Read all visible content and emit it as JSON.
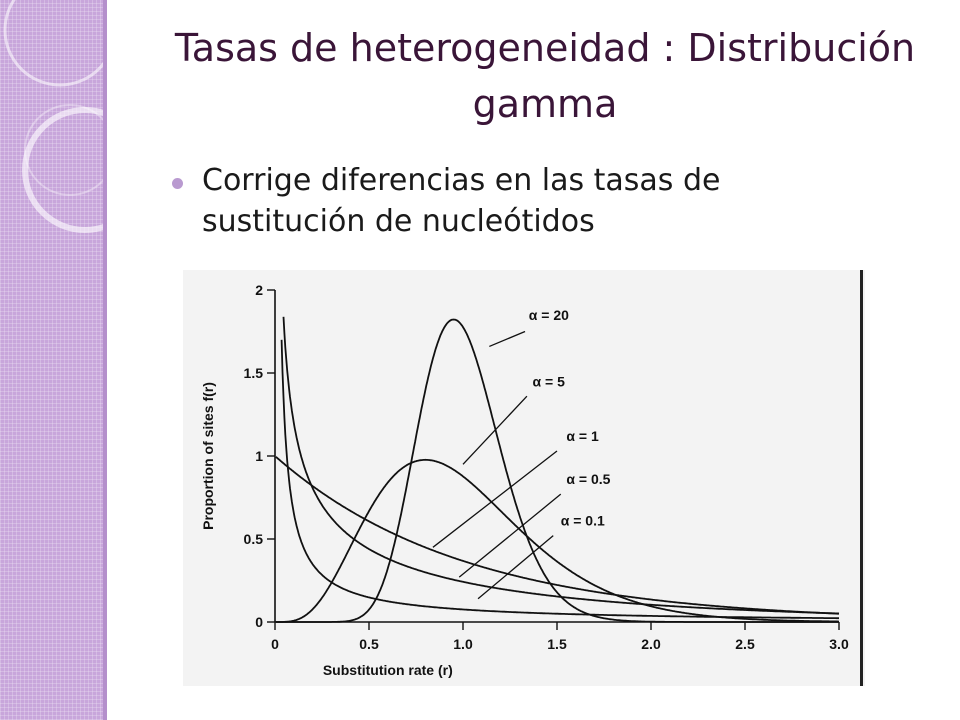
{
  "slide": {
    "title": "Tasas de heterogeneidad : Distribución gamma",
    "bullet": "Corrige diferencias en las tasas de sustitución de nucleótidos"
  },
  "colors": {
    "sidebar": "#c8a6db",
    "title": "#3a1538",
    "bullet": "#b99ad0"
  },
  "chart_data": {
    "type": "line",
    "title": "",
    "xlabel": "Substitution rate (r)",
    "ylabel": "Proportion of sites f(r)",
    "xlim": [
      0,
      3.0
    ],
    "ylim": [
      0,
      2
    ],
    "xticks": [
      "0",
      "0.5",
      "1.0",
      "1.5",
      "2.0",
      "2.5",
      "3.0"
    ],
    "yticks": [
      "0",
      "0.5",
      "1",
      "1.5",
      "2"
    ],
    "grid": false,
    "series": [
      {
        "name": "α = 20",
        "alpha": 20
      },
      {
        "name": "α = 5",
        "alpha": 5
      },
      {
        "name": "α = 1",
        "alpha": 1
      },
      {
        "name": "α = 0.5",
        "alpha": 0.5
      },
      {
        "name": "α = 0.1",
        "alpha": 0.1
      }
    ]
  }
}
